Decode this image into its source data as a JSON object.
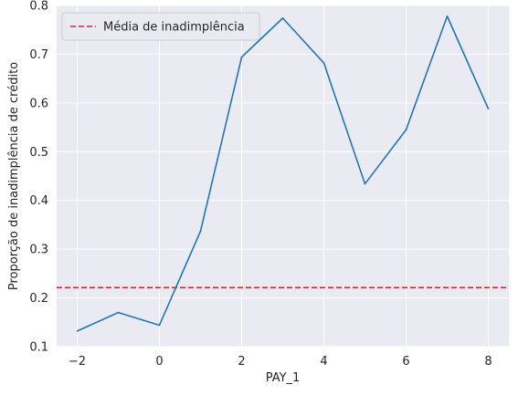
{
  "chart_data": {
    "type": "line",
    "title": "",
    "xlabel": "PAY_1",
    "ylabel": "Proporção de inadimplência de crédito",
    "xlim": [
      -2.5,
      8.5
    ],
    "ylim": [
      0.1,
      0.8
    ],
    "xticks": [
      -2,
      0,
      2,
      4,
      6,
      8
    ],
    "xtick_labels": [
      "−2",
      "0",
      "2",
      "4",
      "6",
      "8"
    ],
    "yticks": [
      0.1,
      0.2,
      0.3,
      0.4,
      0.5,
      0.6,
      0.7,
      0.8
    ],
    "ytick_labels": [
      "0.1",
      "0.2",
      "0.3",
      "0.4",
      "0.5",
      "0.6",
      "0.7",
      "0.8"
    ],
    "grid": true,
    "legend_position": "top-left",
    "series": [
      {
        "values_x": [
          -2,
          -1,
          0,
          1,
          2,
          3,
          4,
          5,
          6,
          7,
          8
        ],
        "values_y": [
          0.132,
          0.17,
          0.144,
          0.337,
          0.694,
          0.774,
          0.682,
          0.434,
          0.545,
          0.778,
          0.588
        ],
        "color": "#1f77b4",
        "style": "solid"
      }
    ],
    "reference_lines": [
      {
        "name": "Média de inadimplência",
        "y": 0.221,
        "color": "#d62728",
        "style": "dashed"
      }
    ],
    "background_color": "#eaeaf2",
    "grid_color": "#ffffff"
  }
}
